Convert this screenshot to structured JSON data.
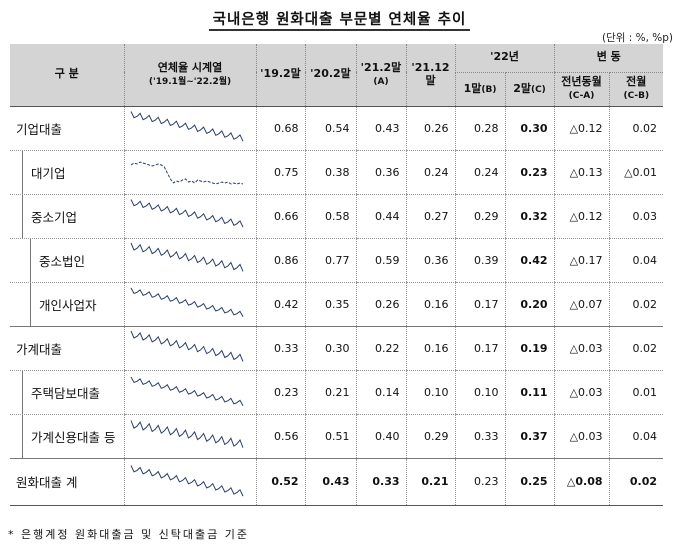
{
  "title": "국내은행 원화대출 부문별 연체율 추이",
  "unit": "(단위 : %, %p)",
  "footnote": "* 은행계정 원화대출금 및 신탁대출금 기준",
  "header": {
    "category": "구  분",
    "trend": "연체율 시계열",
    "trend_range": "('19.1월~'22.2월)",
    "c1": "'19.2말",
    "c2": "'20.2말",
    "c3": "'21.2말",
    "c3_sub": "(A)",
    "c4": "'21.12말",
    "y22": "'22년",
    "m1": "1말",
    "m1_sub": "(B)",
    "m2": "2말",
    "m2_sub": "(C)",
    "change": "변  동",
    "yoy": "전년동월",
    "yoy_sub": "(C-A)",
    "mom": "전월",
    "mom_sub": "(C-B)"
  },
  "rows": [
    {
      "label": "기업대출",
      "level": 0,
      "spark": "corp",
      "v": [
        "0.68",
        "0.54",
        "0.43",
        "0.26",
        "0.28",
        "0.30",
        "△0.12",
        "0.02"
      ]
    },
    {
      "label": "대기업",
      "level": 1,
      "spark": "large",
      "v": [
        "0.75",
        "0.38",
        "0.36",
        "0.24",
        "0.24",
        "0.23",
        "△0.13",
        "△0.01"
      ]
    },
    {
      "label": "중소기업",
      "level": 1,
      "spark": "sme",
      "v": [
        "0.66",
        "0.58",
        "0.44",
        "0.27",
        "0.29",
        "0.32",
        "△0.12",
        "0.03"
      ]
    },
    {
      "label": "중소법인",
      "level": 2,
      "spark": "smecorp",
      "v": [
        "0.86",
        "0.77",
        "0.59",
        "0.36",
        "0.39",
        "0.42",
        "△0.17",
        "0.04"
      ]
    },
    {
      "label": "개인사업자",
      "level": 2,
      "spark": "soho",
      "v": [
        "0.42",
        "0.35",
        "0.26",
        "0.16",
        "0.17",
        "0.20",
        "△0.07",
        "0.02"
      ]
    },
    {
      "label": "가계대출",
      "level": 0,
      "spark": "household",
      "v": [
        "0.33",
        "0.30",
        "0.22",
        "0.16",
        "0.17",
        "0.19",
        "△0.03",
        "0.02"
      ]
    },
    {
      "label": "주택담보대출",
      "level": 1,
      "spark": "mortgage",
      "v": [
        "0.23",
        "0.21",
        "0.14",
        "0.10",
        "0.10",
        "0.11",
        "△0.03",
        "0.01"
      ]
    },
    {
      "label": "가계신용대출 등",
      "level": 1,
      "spark": "credit",
      "v": [
        "0.56",
        "0.51",
        "0.40",
        "0.29",
        "0.33",
        "0.37",
        "△0.03",
        "0.04"
      ]
    },
    {
      "label": "원화대출 계",
      "level": 0,
      "spark": "total",
      "v": [
        "0.52",
        "0.43",
        "0.33",
        "0.21",
        "0.23",
        "0.25",
        "△0.08",
        "0.02"
      ]
    }
  ]
}
